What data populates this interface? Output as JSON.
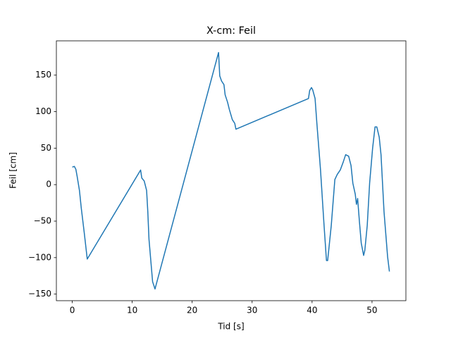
{
  "chart_data": {
    "type": "line",
    "title": "X-cm: Feil",
    "x_label": "Tid [s]",
    "y_label": "Feil [cm]",
    "x": [
      0,
      0.35,
      0.6,
      0.8,
      1.2,
      1.5,
      2.0,
      2.5,
      11.4,
      11.6,
      12.0,
      12.4,
      12.6,
      12.8,
      13.4,
      13.8,
      24.4,
      24.6,
      24.9,
      25.3,
      25.5,
      25.9,
      26.2,
      26.7,
      27.1,
      27.3,
      39.4,
      39.6,
      39.9,
      40.1,
      40.5,
      40.8,
      41.4,
      42.0,
      42.4,
      42.6,
      43.2,
      43.8,
      44.2,
      44.7,
      45.2,
      45.6,
      46.1,
      46.5,
      46.8,
      47.2,
      47.4,
      47.6,
      47.9,
      48.2,
      48.6,
      48.8,
      49.2,
      49.6,
      50.1,
      50.5,
      50.8,
      51.2,
      51.5,
      52.0,
      52.6,
      52.9
    ],
    "series": [
      {
        "name": "Feil",
        "color": "#1f77b4",
        "values": [
          24,
          25,
          21,
          12,
          -8,
          -32,
          -66,
          -102,
          20,
          9,
          5,
          -8,
          -37,
          -75,
          -133,
          -143,
          181,
          149,
          142,
          137,
          123,
          113,
          103,
          89,
          84,
          76,
          118,
          129,
          133,
          130,
          118,
          84,
          21,
          -56,
          -104,
          -104,
          -56,
          7,
          14,
          20,
          31,
          41,
          39,
          26,
          2,
          -13,
          -27,
          -19,
          -51,
          -80,
          -97,
          -90,
          -56,
          2,
          50,
          79,
          79,
          65,
          41,
          -37,
          -99,
          -119
        ]
      }
    ],
    "xlim": [
      -2.65,
      55.65
    ],
    "ylim": [
      -159,
      197
    ],
    "xticks": [
      0,
      10,
      20,
      30,
      40,
      50
    ],
    "yticks": [
      {
        "value": -150,
        "label": "−150"
      },
      {
        "value": -100,
        "label": "−100"
      },
      {
        "value": -50,
        "label": "−50"
      },
      0,
      50,
      100,
      150
    ]
  }
}
